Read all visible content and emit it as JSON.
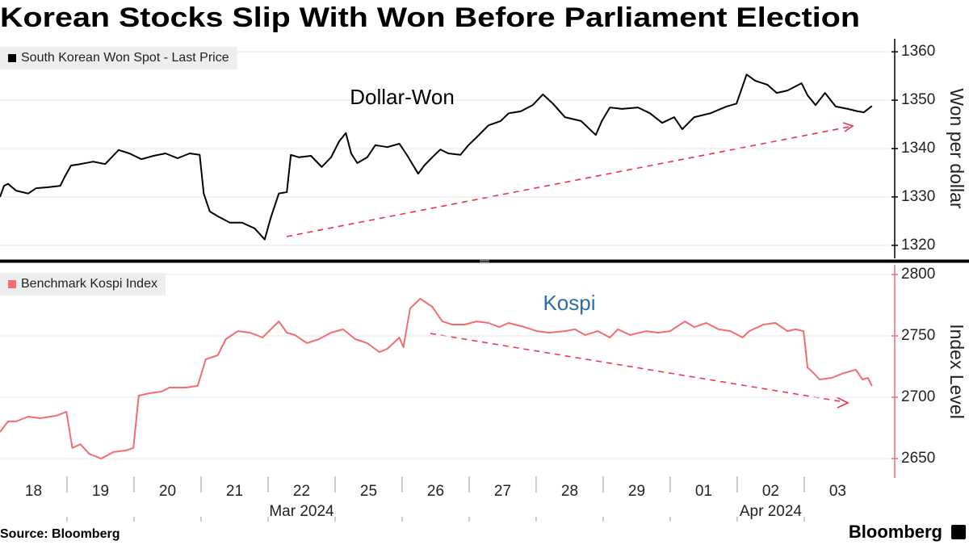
{
  "title": "Korean Stocks Slip With Won Before Parliament Election",
  "source": "Source: Bloomberg",
  "logo": "Bloomberg",
  "chart_data": [
    {
      "type": "line",
      "annotation": "Dollar-Won",
      "y_label": "Won per dollar",
      "axis_color": "#000000",
      "grid": true,
      "legend": "top-left",
      "xlim": [
        0,
        13.29
      ],
      "ylim": [
        1317.3,
        1362.7
      ],
      "yticks": [
        1320,
        1330,
        1340,
        1350,
        1360
      ],
      "x": [
        0,
        0.06,
        0.12,
        0.24,
        0.42,
        0.54,
        0.72,
        0.9,
        0.96,
        1.06,
        1.2,
        1.39,
        1.57,
        1.77,
        1.93,
        2.11,
        2.29,
        2.47,
        2.65,
        2.83,
        2.98,
        3.04,
        3.13,
        3.25,
        3.43,
        3.61,
        3.8,
        3.95,
        4.04,
        4.16,
        4.28,
        4.34,
        4.46,
        4.64,
        4.8,
        4.94,
        5.06,
        5.16,
        5.24,
        5.33,
        5.48,
        5.6,
        5.78,
        5.96,
        6.08,
        6.24,
        6.33,
        6.45,
        6.57,
        6.69,
        6.87,
        6.99,
        7.11,
        7.29,
        7.47,
        7.59,
        7.77,
        7.95,
        8.1,
        8.25,
        8.43,
        8.67,
        8.89,
        8.98,
        9.1,
        9.28,
        9.52,
        9.7,
        9.88,
        10.06,
        10.18,
        10.36,
        10.6,
        10.84,
        10.99,
        11.14,
        11.27,
        11.45,
        11.59,
        11.75,
        11.96,
        12.05,
        12.17,
        12.31,
        12.47,
        12.65,
        12.8,
        12.89,
        13.01
      ],
      "series": [
        {
          "name": "South Korean Won Spot - Last Price",
          "color": "#000000",
          "values": [
            1330,
            1332.3,
            1332.7,
            1331.3,
            1330.7,
            1331.8,
            1332,
            1332.3,
            1334,
            1336.5,
            1336.8,
            1337.3,
            1336.8,
            1339.7,
            1339,
            1337.8,
            1338.5,
            1339,
            1338,
            1339,
            1338.7,
            1330.7,
            1327,
            1326,
            1324.7,
            1324.7,
            1323.5,
            1321.2,
            1325.7,
            1330.7,
            1331,
            1338.7,
            1338.2,
            1338.5,
            1336.2,
            1338.2,
            1341.5,
            1343.2,
            1339,
            1337,
            1338.2,
            1340.7,
            1340.3,
            1341,
            1338.5,
            1334.8,
            1336.5,
            1338.2,
            1339.8,
            1339,
            1338.7,
            1340.7,
            1342.3,
            1344.8,
            1345.7,
            1347.3,
            1347.7,
            1349,
            1351.2,
            1349.3,
            1346.5,
            1345.7,
            1342.8,
            1345.7,
            1348.5,
            1348.2,
            1348.5,
            1347.3,
            1345.3,
            1346.5,
            1344,
            1346.5,
            1347.3,
            1348.7,
            1349.3,
            1355.3,
            1354,
            1353.2,
            1351.5,
            1352,
            1353.5,
            1351,
            1349,
            1351.5,
            1348.7,
            1348.2,
            1347.7,
            1347.5,
            1348.8
          ]
        }
      ]
    },
    {
      "type": "line",
      "annotation": "Kospi",
      "annotation_color": "#2e6ea6",
      "y_label": "Index Level",
      "axis_color": "#f26d6d",
      "grid": true,
      "legend": "top-left",
      "xlim": [
        0,
        13.29
      ],
      "ylim": [
        2634.2,
        2807.9
      ],
      "yticks": [
        2650,
        2700,
        2750,
        2800
      ],
      "xticks": [
        {
          "value": 0.5,
          "label": "18"
        },
        {
          "value": 1.5,
          "label": "19"
        },
        {
          "value": 2.5,
          "label": "20"
        },
        {
          "value": 3.5,
          "label": "21"
        },
        {
          "value": 4.5,
          "label": "22"
        },
        {
          "value": 5.5,
          "label": "25"
        },
        {
          "value": 6.5,
          "label": "26"
        },
        {
          "value": 7.5,
          "label": "27"
        },
        {
          "value": 8.5,
          "label": "28"
        },
        {
          "value": 9.5,
          "label": "29"
        },
        {
          "value": 10.5,
          "label": "01"
        },
        {
          "value": 11.5,
          "label": "02"
        },
        {
          "value": 12.5,
          "label": "03"
        }
      ],
      "x_group_labels": [
        {
          "value": 4.5,
          "label": "Mar 2024"
        },
        {
          "value": 11.5,
          "label": "Apr 2024"
        }
      ],
      "x": [
        0,
        0.12,
        0.24,
        0.42,
        0.6,
        0.84,
        0.99,
        1.08,
        1.2,
        1.33,
        1.51,
        1.69,
        1.87,
        1.99,
        2.07,
        2.23,
        2.41,
        2.53,
        2.77,
        2.95,
        3.07,
        3.25,
        3.37,
        3.55,
        3.73,
        3.92,
        4.04,
        4.16,
        4.28,
        4.4,
        4.58,
        4.76,
        4.94,
        5.12,
        5.3,
        5.48,
        5.66,
        5.78,
        5.96,
        6.02,
        6.12,
        6.27,
        6.45,
        6.6,
        6.75,
        6.93,
        7.11,
        7.29,
        7.45,
        7.59,
        7.83,
        8.01,
        8.19,
        8.43,
        8.58,
        8.73,
        8.92,
        9.1,
        9.22,
        9.4,
        9.64,
        9.82,
        10,
        10.22,
        10.36,
        10.54,
        10.72,
        10.9,
        11.08,
        11.18,
        11.39,
        11.57,
        11.75,
        11.87,
        11.99,
        12.05,
        12.14,
        12.23,
        12.41,
        12.59,
        12.77,
        12.87,
        12.95,
        13.01
      ],
      "series": [
        {
          "name": "Benchmark Kospi Index",
          "color": "#f26d6d",
          "values": [
            2671.7,
            2680.3,
            2680.3,
            2684.2,
            2682.9,
            2684.9,
            2688.2,
            2658.6,
            2661.8,
            2653.9,
            2650,
            2655.3,
            2656.6,
            2658.6,
            2701.3,
            2703.3,
            2704.6,
            2707.9,
            2707.9,
            2709.2,
            2730.9,
            2734.2,
            2747.4,
            2753.9,
            2752.6,
            2748.7,
            2755.3,
            2761.8,
            2752.6,
            2750.7,
            2744.1,
            2747.4,
            2752.6,
            2755.3,
            2747.4,
            2744.1,
            2736.8,
            2739.5,
            2748.7,
            2740.8,
            2772.4,
            2780.3,
            2773.7,
            2761.8,
            2759.2,
            2759.2,
            2761.8,
            2760.5,
            2757.2,
            2760.5,
            2757.2,
            2753.9,
            2752.6,
            2753.9,
            2755.3,
            2750.7,
            2753.9,
            2748.7,
            2755.3,
            2750.7,
            2753.9,
            2752.6,
            2753.9,
            2761.8,
            2757.2,
            2760.5,
            2755.3,
            2753.9,
            2748.7,
            2753.9,
            2759.2,
            2760.5,
            2753.9,
            2755.3,
            2753.9,
            2724.3,
            2719.7,
            2714.5,
            2715.8,
            2719.7,
            2722.4,
            2714.5,
            2715.8,
            2709.2
          ]
        }
      ]
    }
  ]
}
